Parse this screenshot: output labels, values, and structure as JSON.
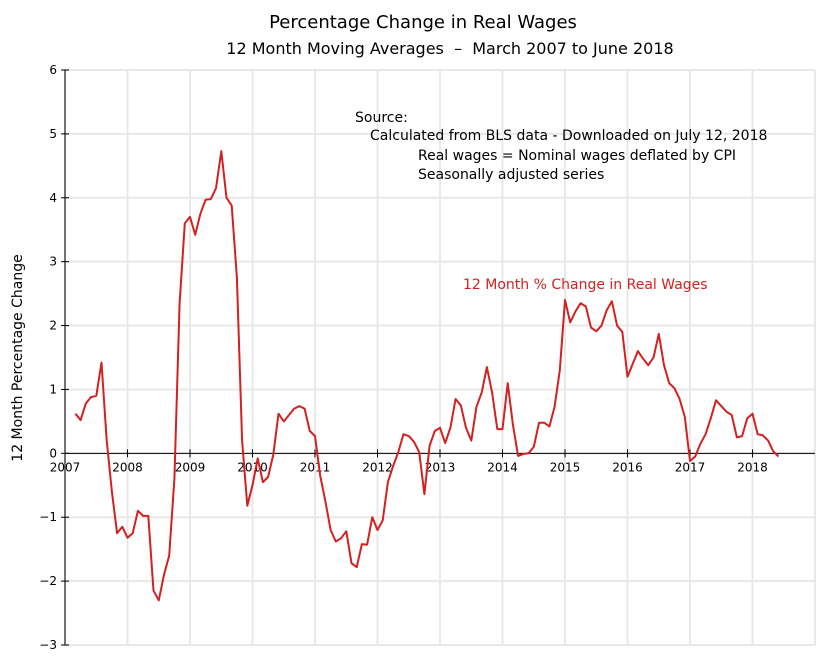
{
  "chart_data": {
    "type": "line",
    "title": "Percentage Change in Real Wages",
    "subtitle": "12 Month Moving Averages  –  March 2007 to June 2018",
    "xlabel": "",
    "ylabel": "12 Month Percentage Change",
    "xlim": [
      2007,
      2019
    ],
    "ylim": [
      -3,
      6
    ],
    "grid": true,
    "x_ticks": [
      "2007",
      "2008",
      "2009",
      "2010",
      "2011",
      "2012",
      "2013",
      "2014",
      "2015",
      "2016",
      "2017",
      "2018"
    ],
    "y_ticks": [
      "-3",
      "-2",
      "-1",
      "0",
      "1",
      "2",
      "3",
      "4",
      "5",
      "6"
    ],
    "annotations": [
      "Source:",
      "Calculated from BLS data - Downloaded on July 12, 2018",
      "Real wages = Nominal wages deflated by CPI",
      "Seasonally adjusted series"
    ],
    "series": [
      {
        "name": "12 Month % Change in Real Wages",
        "color": "#d42020",
        "start": "2007-03",
        "frequency": "monthly",
        "values": [
          0.62,
          0.52,
          0.78,
          0.88,
          0.9,
          1.42,
          0.2,
          -0.6,
          -1.25,
          -1.15,
          -1.32,
          -1.25,
          -0.9,
          -0.98,
          -0.98,
          -2.15,
          -2.3,
          -1.9,
          -1.6,
          -0.4,
          2.35,
          3.6,
          3.7,
          3.42,
          3.75,
          3.97,
          3.98,
          4.15,
          4.73,
          4.0,
          3.88,
          2.75,
          0.2,
          -0.82,
          -0.5,
          -0.08,
          -0.45,
          -0.37,
          -0.02,
          0.62,
          0.5,
          0.6,
          0.7,
          0.74,
          0.7,
          0.35,
          0.27,
          -0.35,
          -0.75,
          -1.2,
          -1.38,
          -1.33,
          -1.22,
          -1.72,
          -1.78,
          -1.42,
          -1.43,
          -1.0,
          -1.2,
          -1.05,
          -0.45,
          -0.2,
          0.02,
          0.3,
          0.27,
          0.18,
          0.02,
          -0.64,
          0.12,
          0.35,
          0.4,
          0.16,
          0.4,
          0.85,
          0.75,
          0.4,
          0.2,
          0.73,
          0.95,
          1.35,
          0.95,
          0.38,
          0.38,
          1.1,
          0.45,
          -0.04,
          -0.01,
          0.0,
          0.1,
          0.48,
          0.48,
          0.42,
          0.73,
          1.3,
          2.4,
          2.05,
          2.22,
          2.35,
          2.3,
          1.97,
          1.91,
          2.0,
          2.24,
          2.38,
          2.0,
          1.9,
          1.2,
          1.4,
          1.6,
          1.48,
          1.38,
          1.5,
          1.87,
          1.38,
          1.1,
          1.02,
          0.85,
          0.57,
          -0.12,
          -0.05,
          0.15,
          0.3,
          0.55,
          0.83,
          0.74,
          0.65,
          0.6,
          0.25,
          0.27,
          0.55,
          0.62,
          0.3,
          0.28,
          0.2,
          0.03,
          -0.05
        ]
      }
    ]
  }
}
